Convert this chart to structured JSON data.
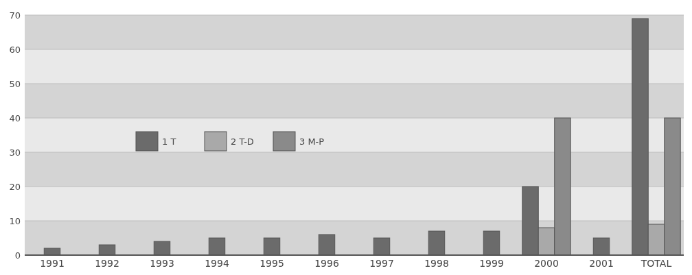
{
  "chart_data": {
    "type": "bar",
    "categories": [
      "1991",
      "1992",
      "1993",
      "1994",
      "1995",
      "1996",
      "1997",
      "1998",
      "1999",
      "2000",
      "2001",
      "TOTAL"
    ],
    "series": [
      {
        "name": "1 T",
        "color": "#6b6b6b",
        "values": [
          2,
          3,
          4,
          5,
          5,
          6,
          5,
          7,
          7,
          20,
          5,
          69
        ]
      },
      {
        "name": "2 T-D",
        "color": "#a9a9a9",
        "values": [
          null,
          null,
          null,
          null,
          null,
          null,
          null,
          null,
          null,
          8,
          null,
          9
        ]
      },
      {
        "name": "3 M-P",
        "color": "#8a8a8a",
        "values": [
          null,
          null,
          null,
          null,
          null,
          null,
          null,
          null,
          null,
          40,
          null,
          40
        ]
      }
    ],
    "ylim": [
      0,
      70
    ],
    "yticks": [
      0,
      10,
      20,
      30,
      40,
      50,
      60,
      70
    ],
    "grid": "y",
    "legend": "left"
  }
}
